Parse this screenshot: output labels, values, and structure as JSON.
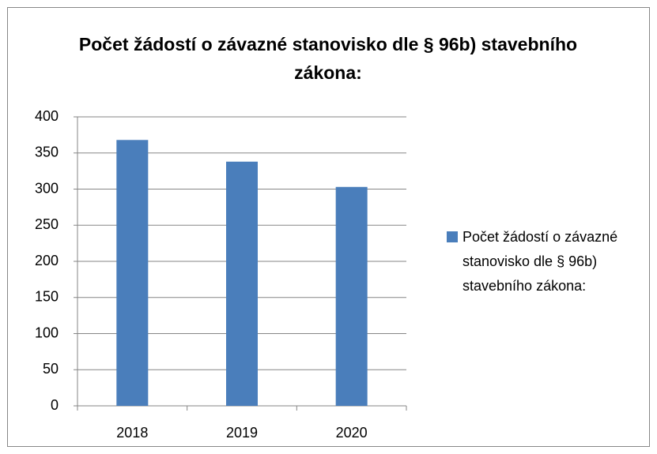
{
  "chart_data": {
    "type": "bar",
    "title": "Počet žádostí o závazné stanovisko dle § 96b) stavebního zákona:",
    "categories": [
      "2018",
      "2019",
      "2020"
    ],
    "series": [
      {
        "name": "Počet žádostí o závazné stanovisko dle § 96b) stavebního zákona:",
        "color": "#4a7ebb",
        "values": [
          368,
          338,
          303
        ]
      }
    ],
    "ylim": [
      0,
      400
    ],
    "yticks": [
      0,
      50,
      100,
      150,
      200,
      250,
      300,
      350,
      400
    ],
    "grid": true,
    "legend": "right"
  }
}
